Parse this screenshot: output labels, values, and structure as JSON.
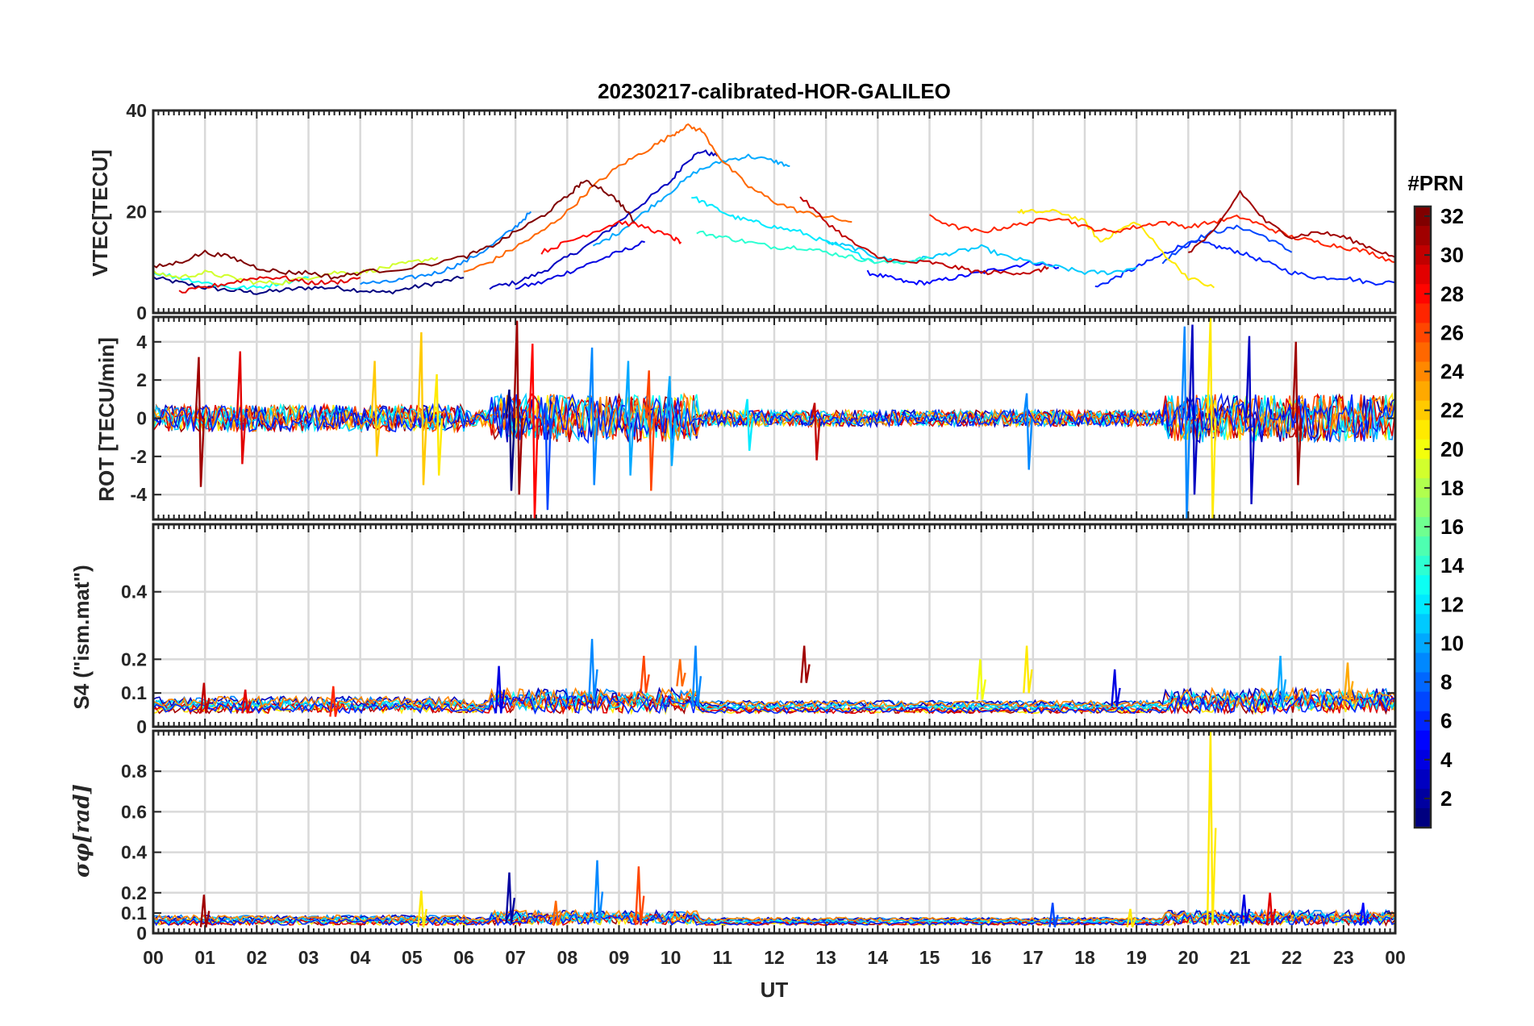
{
  "chart_data": [
    {
      "type": "line",
      "title": "20230217-calibrated-HOR-GALILEO",
      "ylabel": "VTEC[TECU]",
      "ylim": [
        0,
        40
      ],
      "yticks": [
        0,
        20,
        40
      ],
      "xlim": [
        0,
        24
      ],
      "series": [
        {
          "prn": 1,
          "x": [
            0.0,
            0.5,
            1.0,
            1.5,
            2.0,
            2.5,
            3.0,
            3.5,
            4.0,
            4.5,
            5.0,
            5.5,
            6.0
          ],
          "values": [
            7,
            6,
            5,
            4.5,
            4,
            4.5,
            5,
            5,
            4.5,
            4,
            5,
            6,
            7
          ]
        },
        {
          "prn": 3,
          "x": [
            6.5,
            7.0,
            7.5,
            8.0,
            8.5,
            9.0,
            9.5,
            10.0,
            10.3,
            10.6,
            10.9
          ],
          "values": [
            5,
            6,
            8,
            11,
            14,
            18,
            22,
            26,
            30,
            32,
            31
          ]
        },
        {
          "prn": 4,
          "x": [
            7.0,
            7.5,
            8.0,
            8.5,
            9.0,
            9.5
          ],
          "values": [
            5,
            6,
            8,
            10,
            12,
            14
          ]
        },
        {
          "prn": 5,
          "x": [
            13.8,
            14.2,
            14.6,
            15.0,
            15.5,
            16.0,
            16.5,
            17.0,
            17.5
          ],
          "values": [
            8,
            7,
            6,
            6,
            7,
            8,
            9,
            10,
            9
          ]
        },
        {
          "prn": 6,
          "x": [
            18.2,
            18.6,
            19.0,
            19.4,
            19.8,
            20.2,
            20.6,
            21.0,
            21.5,
            22.0,
            22.5,
            23.0,
            23.5,
            24.0
          ],
          "values": [
            5,
            7,
            9,
            11,
            13,
            14,
            13,
            12,
            10,
            8,
            7,
            7,
            6,
            6
          ]
        },
        {
          "prn": 7,
          "x": [
            19.5,
            20.0,
            20.5,
            21.0,
            21.5,
            22.0
          ],
          "values": [
            10,
            14,
            16,
            17,
            15,
            12
          ]
        },
        {
          "prn": 9,
          "x": [
            4.0,
            4.5,
            5.0,
            5.5,
            6.0,
            6.5,
            7.0,
            7.3
          ],
          "values": [
            6,
            6,
            7,
            8,
            10,
            13,
            17,
            20
          ]
        },
        {
          "prn": 10,
          "x": [
            8.5,
            9.0,
            9.5,
            10.0,
            10.5,
            11.0,
            11.5,
            12.0,
            12.3
          ],
          "values": [
            13,
            16,
            20,
            24,
            28,
            30,
            31,
            30,
            29
          ]
        },
        {
          "prn": 11,
          "x": [
            13.0,
            13.5,
            14.0,
            14.5,
            15.0,
            15.5,
            16.0,
            16.5,
            17.0,
            17.5,
            18.0,
            18.5,
            19.0
          ],
          "values": [
            14,
            13,
            11,
            10,
            11,
            12,
            13,
            11,
            10,
            9,
            8,
            8,
            9
          ]
        },
        {
          "prn": 12,
          "x": [
            10.4,
            10.8,
            11.2,
            11.6,
            12.0,
            12.5,
            13.0,
            13.5,
            14.0
          ],
          "values": [
            23,
            21,
            19,
            18,
            17,
            16,
            14,
            12,
            10
          ]
        },
        {
          "prn": 13,
          "x": [
            0.0,
            0.5,
            1.0,
            1.5,
            2.0,
            2.5,
            3.0
          ],
          "values": [
            8,
            7,
            6,
            5,
            5,
            6,
            7
          ]
        },
        {
          "prn": 14,
          "x": [
            10.5,
            11.0,
            11.5,
            12.0,
            12.5,
            13.0,
            13.5,
            14.0,
            14.5,
            15.0
          ],
          "values": [
            16,
            15,
            14,
            13,
            13,
            12,
            11,
            10,
            10,
            11
          ]
        },
        {
          "prn": 19,
          "x": [
            0.0,
            0.5,
            1.0,
            1.5,
            2.0,
            2.5,
            3.0,
            3.5,
            4.0,
            4.5,
            5.0,
            5.5
          ],
          "values": [
            8,
            7,
            8,
            7,
            6,
            6,
            7,
            8,
            8,
            9,
            10,
            11
          ]
        },
        {
          "prn": 21,
          "x": [
            16.7,
            17.0,
            17.5,
            18.0,
            18.3,
            18.6,
            19.0,
            19.5,
            20.0,
            20.5
          ],
          "values": [
            20,
            20,
            20,
            18,
            14,
            16,
            18,
            12,
            7,
            5
          ]
        },
        {
          "prn": 25,
          "x": [
            6.0,
            6.5,
            7.0,
            7.5,
            8.0,
            8.5,
            9.0,
            9.5,
            10.0,
            10.3,
            10.6,
            11.0,
            11.5,
            12.0,
            12.5,
            13.0,
            13.5
          ],
          "values": [
            8,
            10,
            13,
            16,
            20,
            25,
            29,
            32,
            35,
            37,
            36,
            30,
            25,
            22,
            20,
            19,
            18
          ]
        },
        {
          "prn": 27,
          "x": [
            15.0,
            15.5,
            16.0,
            16.5,
            17.0,
            17.5,
            18.0,
            18.5,
            19.0,
            19.5,
            20.0,
            20.5,
            21.0,
            21.5,
            22.0,
            22.5,
            23.0,
            23.5,
            24.0
          ],
          "values": [
            19,
            17,
            16,
            17,
            18,
            19,
            17,
            16,
            17,
            18,
            17,
            18,
            19,
            17,
            15,
            14,
            13,
            12,
            10
          ]
        },
        {
          "prn": 28,
          "x": [
            7.5,
            8.0,
            8.5,
            9.0,
            9.5,
            10.0,
            10.2
          ],
          "values": [
            12,
            14,
            16,
            18,
            17,
            15,
            14
          ]
        },
        {
          "prn": 29,
          "x": [
            0.5,
            1.0,
            1.5,
            2.0,
            2.5,
            3.0,
            3.5,
            4.0
          ],
          "values": [
            4,
            5,
            6,
            7,
            7,
            6,
            6,
            7
          ]
        },
        {
          "prn": 30,
          "x": [
            12.5,
            13.0,
            13.5,
            14.0,
            14.5,
            15.0,
            15.5,
            16.0,
            16.5,
            17.0,
            17.3
          ],
          "values": [
            23,
            18,
            14,
            11,
            10,
            10,
            9,
            8,
            8,
            8,
            9
          ]
        },
        {
          "prn": 31,
          "x": [
            20.0,
            20.5,
            21.0,
            21.5,
            22.0,
            22.5,
            23.0,
            23.5,
            24.0
          ],
          "values": [
            12,
            16,
            24,
            18,
            15,
            16,
            15,
            13,
            11
          ]
        },
        {
          "prn": 32,
          "x": [
            0.0,
            0.5,
            1.0,
            1.5,
            2.0,
            2.5,
            3.0,
            3.5,
            4.0,
            5.0,
            6.0,
            6.5,
            7.0,
            7.5,
            8.0,
            8.3,
            8.6,
            9.0,
            9.3
          ],
          "values": [
            9,
            10,
            12,
            11,
            9,
            8,
            8,
            7,
            8,
            9,
            11,
            13,
            16,
            19,
            23,
            26,
            25,
            22,
            18
          ]
        }
      ]
    },
    {
      "type": "line",
      "ylabel": "ROT [TECU/min]",
      "ylim": [
        -5.3,
        5.3
      ],
      "yticks": [
        -4,
        -2,
        0,
        2,
        4
      ],
      "xlim": [
        0,
        24
      ],
      "spikes": [
        {
          "prn": 31,
          "x": 0.9,
          "min": -3.6,
          "max": 3.2
        },
        {
          "prn": 29,
          "x": 1.7,
          "min": -2.4,
          "max": 3.5
        },
        {
          "prn": 22,
          "x": 4.3,
          "min": -2.0,
          "max": 3.0
        },
        {
          "prn": 22,
          "x": 5.2,
          "min": -3.5,
          "max": 4.5
        },
        {
          "prn": 21,
          "x": 5.5,
          "min": -3.0,
          "max": 2.3
        },
        {
          "prn": 1,
          "x": 6.9,
          "min": -3.8,
          "max": 1.5
        },
        {
          "prn": 31,
          "x": 7.05,
          "min": -4.0,
          "max": 5.1
        },
        {
          "prn": 28,
          "x": 7.35,
          "min": -5.3,
          "max": 3.9
        },
        {
          "prn": 7,
          "x": 7.6,
          "min": -4.8,
          "max": 0.8
        },
        {
          "prn": 9,
          "x": 8.5,
          "min": -3.5,
          "max": 3.7
        },
        {
          "prn": 10,
          "x": 9.2,
          "min": -3.0,
          "max": 3.0
        },
        {
          "prn": 26,
          "x": 9.6,
          "min": -3.8,
          "max": 2.5
        },
        {
          "prn": 10,
          "x": 10.0,
          "min": -2.5,
          "max": 2.2
        },
        {
          "prn": 12,
          "x": 11.5,
          "min": -1.7,
          "max": 1.0
        },
        {
          "prn": 30,
          "x": 12.8,
          "min": -2.2,
          "max": 0.8
        },
        {
          "prn": 9,
          "x": 16.9,
          "min": -2.7,
          "max": 1.3
        },
        {
          "prn": 9,
          "x": 19.95,
          "min": -5.3,
          "max": 4.8
        },
        {
          "prn": 3,
          "x": 20.1,
          "min": -4.0,
          "max": 4.9
        },
        {
          "prn": 21,
          "x": 20.45,
          "min": -5.3,
          "max": 5.3
        },
        {
          "prn": 3,
          "x": 21.2,
          "min": -4.5,
          "max": 4.3
        },
        {
          "prn": 31,
          "x": 22.1,
          "min": -3.5,
          "max": 4.0
        }
      ]
    },
    {
      "type": "line",
      "ylabel": "S4 (\"ism.mat\")",
      "ylim": [
        0,
        0.6
      ],
      "yticks": [
        0,
        0.1,
        0.2,
        0.4
      ],
      "xlim": [
        0,
        24
      ],
      "spikes": [
        {
          "prn": 30,
          "x": 1.0,
          "min": 0.04,
          "max": 0.13
        },
        {
          "prn": 29,
          "x": 1.8,
          "min": 0.04,
          "max": 0.11
        },
        {
          "prn": 27,
          "x": 3.5,
          "min": 0.03,
          "max": 0.12
        },
        {
          "prn": 4,
          "x": 6.7,
          "min": 0.04,
          "max": 0.18
        },
        {
          "prn": 9,
          "x": 8.5,
          "min": 0.08,
          "max": 0.26
        },
        {
          "prn": 26,
          "x": 9.5,
          "min": 0.1,
          "max": 0.21
        },
        {
          "prn": 25,
          "x": 10.2,
          "min": 0.12,
          "max": 0.2
        },
        {
          "prn": 9,
          "x": 10.5,
          "min": 0.06,
          "max": 0.24
        },
        {
          "prn": 31,
          "x": 12.6,
          "min": 0.13,
          "max": 0.24
        },
        {
          "prn": 20,
          "x": 16.0,
          "min": 0.08,
          "max": 0.2
        },
        {
          "prn": 21,
          "x": 16.9,
          "min": 0.1,
          "max": 0.24
        },
        {
          "prn": 4,
          "x": 18.6,
          "min": 0.06,
          "max": 0.17
        },
        {
          "prn": 10,
          "x": 21.8,
          "min": 0.07,
          "max": 0.21
        },
        {
          "prn": 23,
          "x": 23.1,
          "min": 0.08,
          "max": 0.19
        }
      ]
    },
    {
      "type": "line",
      "ylabel": "σφ[rad]",
      "ylim": [
        0,
        1
      ],
      "yticks": [
        0,
        0.1,
        0.2,
        0.4,
        0.6,
        0.8
      ],
      "xlim": [
        0,
        24
      ],
      "xlabel": "UT",
      "xticklabels": [
        "00",
        "01",
        "02",
        "03",
        "04",
        "05",
        "06",
        "07",
        "08",
        "09",
        "10",
        "11",
        "12",
        "13",
        "14",
        "15",
        "16",
        "17",
        "18",
        "19",
        "20",
        "21",
        "22",
        "23",
        "00"
      ],
      "spikes": [
        {
          "prn": 31,
          "x": 1.0,
          "min": 0.03,
          "max": 0.19
        },
        {
          "prn": 21,
          "x": 5.2,
          "min": 0.03,
          "max": 0.21
        },
        {
          "prn": 2,
          "x": 6.9,
          "min": 0.05,
          "max": 0.3
        },
        {
          "prn": 25,
          "x": 7.8,
          "min": 0.04,
          "max": 0.16
        },
        {
          "prn": 9,
          "x": 8.6,
          "min": 0.05,
          "max": 0.36
        },
        {
          "prn": 26,
          "x": 9.4,
          "min": 0.04,
          "max": 0.33
        },
        {
          "prn": 7,
          "x": 17.4,
          "min": 0.03,
          "max": 0.15
        },
        {
          "prn": 21,
          "x": 18.9,
          "min": 0.03,
          "max": 0.12
        },
        {
          "prn": 21,
          "x": 20.45,
          "min": 0.04,
          "max": 1.0
        },
        {
          "prn": 4,
          "x": 21.1,
          "min": 0.05,
          "max": 0.19
        },
        {
          "prn": 29,
          "x": 21.6,
          "min": 0.04,
          "max": 0.2
        },
        {
          "prn": 5,
          "x": 23.4,
          "min": 0.04,
          "max": 0.15
        }
      ]
    }
  ],
  "colorbar": {
    "label": "#PRN",
    "range": [
      1,
      32
    ],
    "ticks": [
      "2",
      "4",
      "6",
      "8",
      "10",
      "12",
      "14",
      "16",
      "18",
      "20",
      "22",
      "24",
      "26",
      "28",
      "30",
      "32"
    ]
  }
}
